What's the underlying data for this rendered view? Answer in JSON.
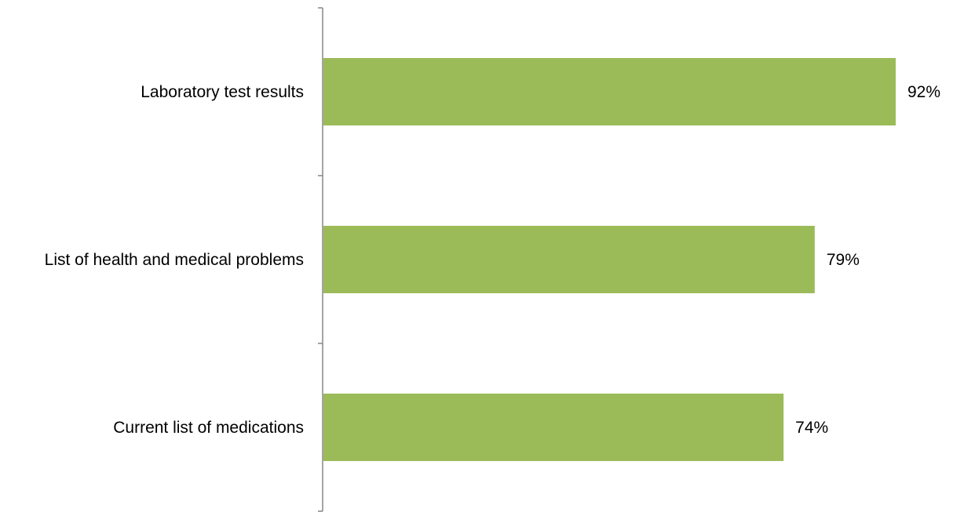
{
  "chart_data": {
    "type": "bar",
    "orientation": "horizontal",
    "title": "",
    "xlabel": "",
    "ylabel": "",
    "categories": [
      "Laboratory test results",
      "List of health and medical problems",
      "Current list of medications"
    ],
    "values": [
      92,
      79,
      74
    ],
    "value_labels": [
      "92%",
      "79%",
      "74%"
    ],
    "unit": "%",
    "xlim": [
      0,
      100
    ],
    "grid": false,
    "legend": "none",
    "bar_color": "#9BBB59",
    "axis_color": "#868686"
  }
}
